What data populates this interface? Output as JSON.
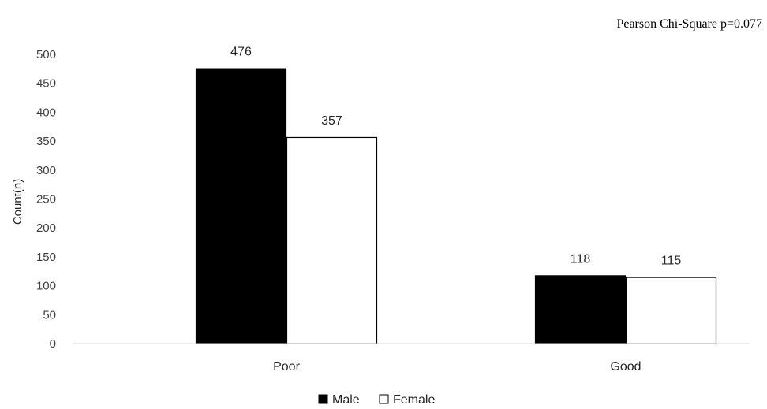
{
  "chart_data": {
    "type": "bar",
    "categories": [
      "Poor",
      "Good"
    ],
    "series": [
      {
        "name": "Male",
        "values": [
          476,
          118
        ],
        "color": "#000000"
      },
      {
        "name": "Female",
        "values": [
          357,
          115
        ],
        "color": "#ffffff"
      }
    ],
    "title": "",
    "xlabel": "",
    "ylabel": "Count(n)",
    "ylim": [
      0,
      500
    ],
    "yticks": [
      0,
      50,
      100,
      150,
      200,
      250,
      300,
      350,
      400,
      450,
      500
    ],
    "grid": false,
    "legend_position": "bottom",
    "annotation": "Pearson Chi-Square  p=0.077",
    "data_labels": true
  }
}
